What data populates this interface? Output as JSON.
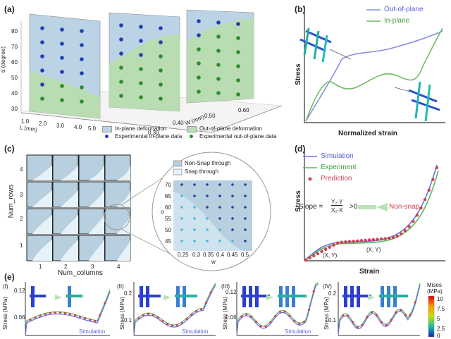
{
  "panel_labels": {
    "a": "(a)",
    "b": "(b)",
    "c": "(c)",
    "d": "(d)",
    "e": "(e)"
  },
  "panel_a": {
    "ylabel": "α (degree)",
    "xlabel": "L (mm)",
    "zlabel": "W (mm)",
    "y_ticks": [
      "80",
      "70",
      "60",
      "50",
      "40",
      "30"
    ],
    "x_ticks": [
      "1.0",
      "2.0",
      "3.0",
      "4.0",
      "5.0"
    ],
    "z_ticks": [
      "0.30",
      "0.40",
      "0.50",
      "0.60"
    ],
    "legend": {
      "inplane_region": "In-plane deformation",
      "outplane_region": "Out-of-plane deformation",
      "inplane_data": "Experimental in-plane data",
      "outplane_data": "Experimental out-of-plane data"
    },
    "colors": {
      "inplane": "#bcd3e6",
      "outplane": "#b9dcb2",
      "dot_blue": "#1f3fb0",
      "dot_green": "#2e8a2e"
    }
  },
  "panel_b": {
    "ylabel": "Stress",
    "xlabel": "Normalized strain",
    "legend": [
      "Out-of-plane",
      "In-plane"
    ],
    "colors": {
      "out_of_plane": "#8a8fe0",
      "in_plane": "#6bbf5a"
    }
  },
  "panel_c": {
    "ylabel": "Num_rows",
    "xlabel": "Num_columns",
    "row_ticks": [
      "4",
      "3",
      "2",
      "1"
    ],
    "col_ticks": [
      "1",
      "2",
      "3",
      "4"
    ],
    "inset": {
      "legend": [
        "Non-Snap through",
        "Snap through"
      ],
      "ylabel": "α",
      "xlabel": "w",
      "y_ticks": [
        "70",
        "65",
        "60",
        "55",
        "50",
        "45"
      ],
      "x_ticks": [
        "0.25",
        "0.3",
        "0.35",
        "0.4",
        "0.45",
        "0.5"
      ]
    }
  },
  "panel_d": {
    "ylabel": "Stress",
    "xlabel": "Strain",
    "legend": [
      "Simulation",
      "Experiment",
      "Prediction"
    ],
    "slope_label": "Slope =",
    "slope_numerator": "Y₂-Y",
    "slope_denominator": "X₂-X",
    "slope_condition": ">0",
    "slope_result": "Non-snap",
    "point1": "(X, Y)",
    "point2": "(X, Y)",
    "colors": {
      "simulation": "#6f6fe0",
      "experiment": "#5cb85c",
      "prediction": "#d04050"
    }
  },
  "panel_e": {
    "ylabel": "Stress (MPa)",
    "subpanels": [
      {
        "label": "(I)",
        "ticks": [
          "0.12",
          "0.06"
        ],
        "legend": "Simulation"
      },
      {
        "label": "(II)",
        "ticks": [
          "0.2",
          "0.1"
        ],
        "legend": "Simulation"
      },
      {
        "label": "(III)",
        "ticks": [
          "0.12",
          "0.06"
        ],
        "legend": "Simulation"
      },
      {
        "label": "(IV)",
        "ticks": [
          "0.2",
          "0.1"
        ],
        "legend": ""
      }
    ],
    "colorbar": {
      "title": "Mises (MPa)",
      "ticks": [
        "10",
        "7.5",
        "5",
        "2.5",
        "0"
      ]
    }
  }
}
